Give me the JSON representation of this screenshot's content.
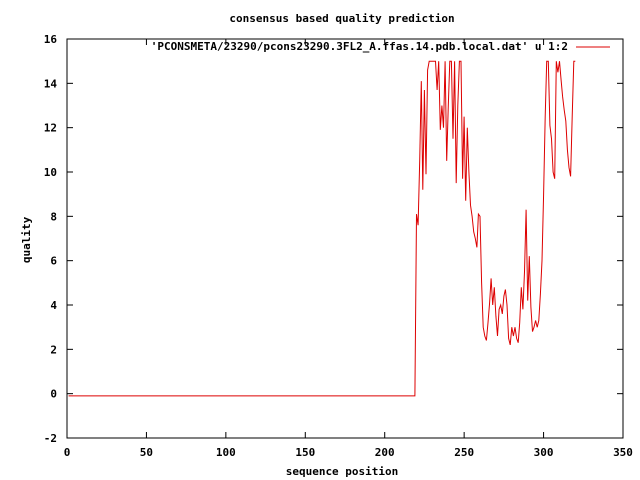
{
  "chart_data": {
    "type": "line",
    "title": "consensus based quality prediction",
    "xlabel": "sequence position",
    "ylabel": "quality",
    "xlim": [
      0,
      350
    ],
    "ylim": [
      -2,
      16
    ],
    "xticks": [
      0,
      50,
      100,
      150,
      200,
      250,
      300,
      350
    ],
    "yticks": [
      -2,
      0,
      2,
      4,
      6,
      8,
      10,
      12,
      14,
      16
    ],
    "grid": false,
    "legend_position": "top-right",
    "series": [
      {
        "name": "'PCONSMETA/23290/pcons23290.3FL2_A.ffas.14.pdb.local.dat' u 1:2",
        "color": "#dd0000",
        "x": [
          1,
          219,
          220,
          221,
          222,
          223,
          224,
          225,
          226,
          227,
          228,
          229,
          230,
          231,
          232,
          233,
          234,
          235,
          236,
          237,
          238,
          239,
          240,
          241,
          242,
          243,
          244,
          245,
          246,
          247,
          248,
          249,
          250,
          251,
          252,
          253,
          254,
          255,
          256,
          257,
          258,
          259,
          260,
          261,
          262,
          263,
          264,
          265,
          266,
          267,
          268,
          269,
          270,
          271,
          272,
          273,
          274,
          275,
          276,
          277,
          278,
          279,
          280,
          281,
          282,
          283,
          284,
          285,
          286,
          287,
          288,
          289,
          290,
          291,
          292,
          293,
          294,
          295,
          296,
          297,
          298,
          299,
          300,
          301,
          302,
          303,
          304,
          305,
          306,
          307,
          308,
          309,
          310,
          311,
          312,
          313,
          314,
          315,
          316,
          317,
          318,
          319,
          320
        ],
        "y": [
          -0.1,
          -0.1,
          8.1,
          7.6,
          10.5,
          14.1,
          9.2,
          13.7,
          9.9,
          14.6,
          15.0,
          15.0,
          15.0,
          15.0,
          15.0,
          13.7,
          15.0,
          11.9,
          13.0,
          12.0,
          15.0,
          10.5,
          13.0,
          15.0,
          15.0,
          11.5,
          15.0,
          9.5,
          13.0,
          15.0,
          15.0,
          9.7,
          12.5,
          8.7,
          12.0,
          10.0,
          8.5,
          8.0,
          7.3,
          7.0,
          6.6,
          8.1,
          8.0,
          5.0,
          3.0,
          2.6,
          2.4,
          3.2,
          4.1,
          5.2,
          4.0,
          4.8,
          3.5,
          2.6,
          3.8,
          4.0,
          3.6,
          4.4,
          4.7,
          4.0,
          2.5,
          2.2,
          3.0,
          2.6,
          3.0,
          2.5,
          2.3,
          3.2,
          4.8,
          3.8,
          5.5,
          8.3,
          4.2,
          6.2,
          3.9,
          2.8,
          3.0,
          3.3,
          3.0,
          3.3,
          4.5,
          6.0,
          9.0,
          12.5,
          15.0,
          15.0,
          12.1,
          11.5,
          10.0,
          9.7,
          15.0,
          14.5,
          15.0,
          14.2,
          13.4,
          12.8,
          12.3,
          11.0,
          10.2,
          9.8,
          12.5,
          15.0,
          15.0
        ]
      }
    ]
  }
}
